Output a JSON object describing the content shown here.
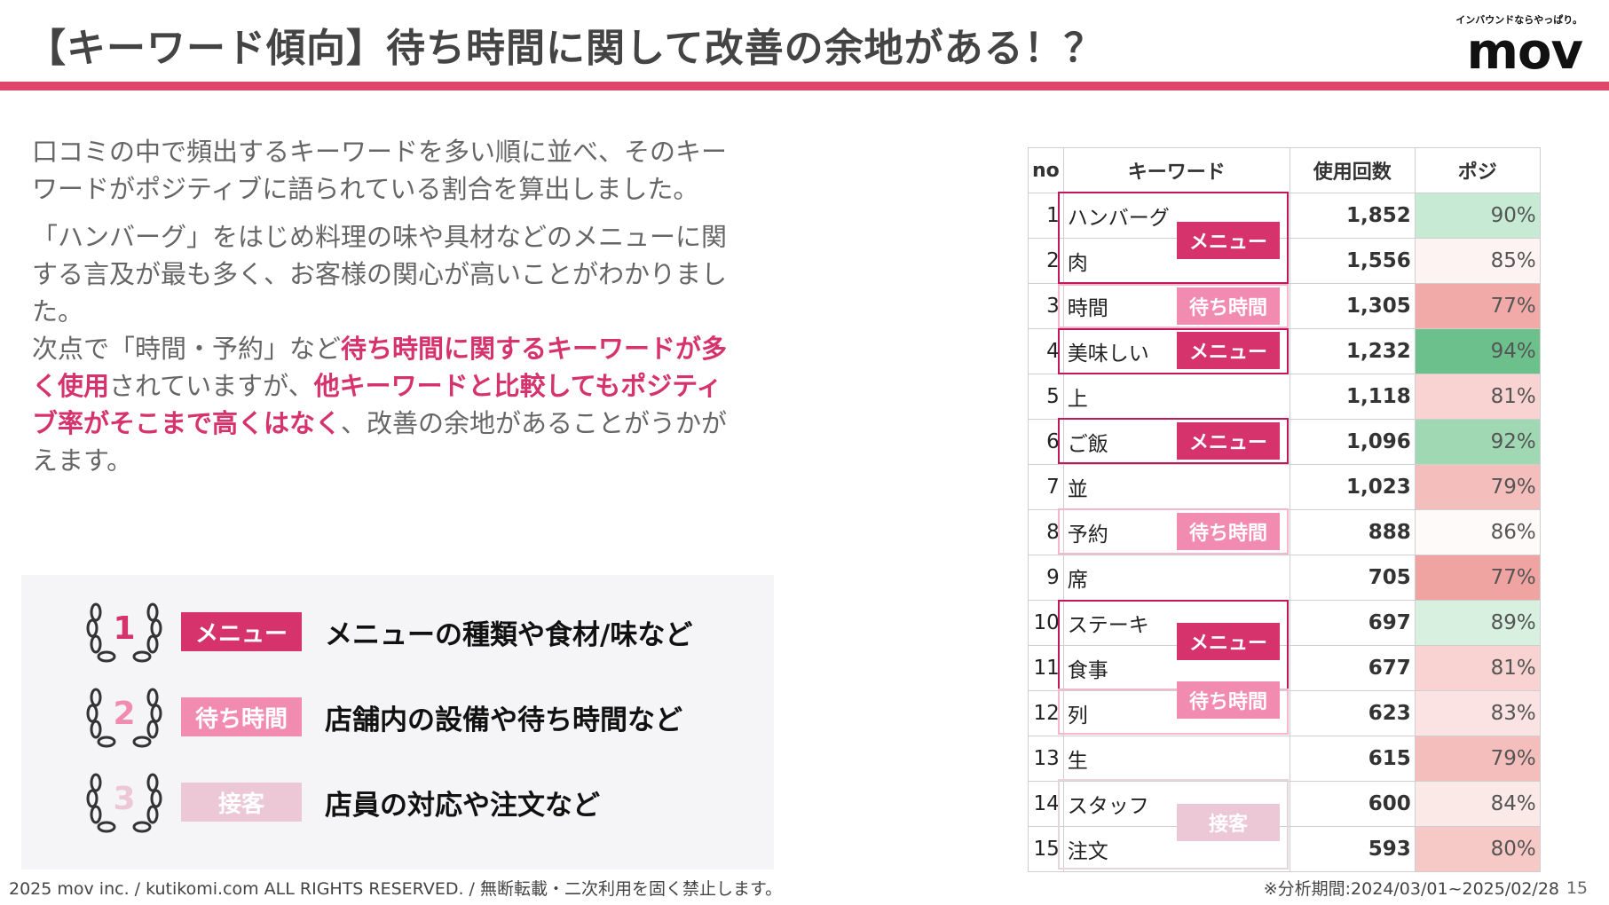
{
  "title": "【キーワード傾向】待ち時間に関して改善の余地がある！？",
  "logo": {
    "tagline": "インバウンドならやっぱり。",
    "name": "mov"
  },
  "body": {
    "p1": "口コミの中で頻出するキーワードを多い順に並べ、そのキーワードがポジティブに語られている割合を算出しました。",
    "p2": "「ハンバーグ」をはじめ料理の味や具材などのメニューに関する言及が最も多く、お客様の関心が高いことがわかりました。",
    "p3_a": "次点で「時間・予約」など",
    "p3_b": "待ち時間に関するキーワードが多く使用",
    "p3_c": "されていますが、",
    "p3_d": "他キーワードと比較してもポジティブ率がそこまで高くはなく",
    "p3_e": "、改善の余地があることがうかがえます。"
  },
  "colors": {
    "menu": "#d6336c",
    "wait": "#f28bb0",
    "service": "#ecc7d5",
    "accent": "#e0456a"
  },
  "legend": [
    {
      "rank": "1",
      "tag": "メニュー",
      "desc": "メニューの種類や食材/味など"
    },
    {
      "rank": "2",
      "tag": "待ち時間",
      "desc": "店舗内の設備や待ち時間など"
    },
    {
      "rank": "3",
      "tag": "接客",
      "desc": "店員の対応や注文など"
    }
  ],
  "table": {
    "headers": {
      "no": "no",
      "keyword": "キーワード",
      "count": "使用回数",
      "positive": "ポジ"
    },
    "rows": [
      {
        "no": "1",
        "kw": "ハンバーグ",
        "count": "1,852",
        "pos": "90%",
        "pos_color": "#c6ead3"
      },
      {
        "no": "2",
        "kw": "肉",
        "count": "1,556",
        "pos": "85%",
        "pos_color": "#fdf3f3"
      },
      {
        "no": "3",
        "kw": "時間",
        "count": "1,305",
        "pos": "77%",
        "pos_color": "#f2aaa8"
      },
      {
        "no": "4",
        "kw": "美味しい",
        "count": "1,232",
        "pos": "94%",
        "pos_color": "#6cc08b"
      },
      {
        "no": "5",
        "kw": "上",
        "count": "1,118",
        "pos": "81%",
        "pos_color": "#f8d3d1"
      },
      {
        "no": "6",
        "kw": "ご飯",
        "count": "1,096",
        "pos": "92%",
        "pos_color": "#9fd8b3"
      },
      {
        "no": "7",
        "kw": "並",
        "count": "1,023",
        "pos": "79%",
        "pos_color": "#f4bebc"
      },
      {
        "no": "8",
        "kw": "予約",
        "count": "888",
        "pos": "86%",
        "pos_color": "#fefafa"
      },
      {
        "no": "9",
        "kw": "席",
        "count": "705",
        "pos": "77%",
        "pos_color": "#f0a4a1"
      },
      {
        "no": "10",
        "kw": "ステーキ",
        "count": "697",
        "pos": "89%",
        "pos_color": "#d7f0df"
      },
      {
        "no": "11",
        "kw": "食事",
        "count": "677",
        "pos": "81%",
        "pos_color": "#f8d3d1"
      },
      {
        "no": "12",
        "kw": "列",
        "count": "623",
        "pos": "83%",
        "pos_color": "#fae3e2"
      },
      {
        "no": "13",
        "kw": "生",
        "count": "615",
        "pos": "79%",
        "pos_color": "#f4bebc"
      },
      {
        "no": "14",
        "kw": "スタッフ",
        "count": "600",
        "pos": "84%",
        "pos_color": "#fbe9e8"
      },
      {
        "no": "15",
        "kw": "注文",
        "count": "593",
        "pos": "80%",
        "pos_color": "#f6c8c6"
      }
    ],
    "group_tags": [
      "メニュー",
      "待ち時間",
      "メニュー",
      "メニュー",
      "待ち時間",
      "メニュー",
      "待ち時間",
      "接客"
    ]
  },
  "footer": "2025 mov inc. / kutikomi.com ALL RIGHTS RESERVED. / 無断転載・二次利用を固く禁止します。",
  "period": "※分析期間:2024/03/01~2025/02/28",
  "page_number": "15"
}
